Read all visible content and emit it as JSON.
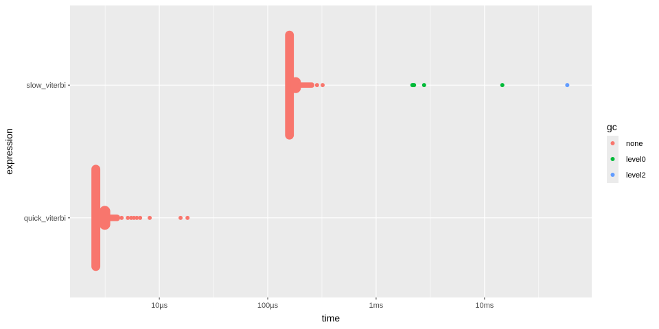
{
  "chart_data": {
    "type": "scatter",
    "xlabel": "time",
    "ylabel": "expression",
    "x_scale": "log10",
    "x_unit": "seconds",
    "xlim": [
      1.5e-06,
      0.0975
    ],
    "grid": true,
    "categories": [
      "quick_viterbi",
      "slow_viterbi"
    ],
    "x_ticks": [
      {
        "value": 1e-05,
        "label": "10µs"
      },
      {
        "value": 0.0001,
        "label": "100µs"
      },
      {
        "value": 0.001,
        "label": "1ms"
      },
      {
        "value": 0.01,
        "label": "10ms"
      }
    ],
    "legend": {
      "title": "gc",
      "placement": "right",
      "entries": [
        {
          "label": "none",
          "color": "#F8766D"
        },
        {
          "label": "level0",
          "color": "#00BA38"
        },
        {
          "label": "level2",
          "color": "#619CFF"
        }
      ]
    },
    "dense_clusters": [
      {
        "expression": "quick_viterbi",
        "gc": "none",
        "time_min": 2.45e-06,
        "time_max": 2.75e-06,
        "spread": 0.4
      },
      {
        "expression": "quick_viterbi",
        "gc": "none",
        "time_min": 2.9e-06,
        "time_max": 3.4e-06,
        "spread": 0.09
      },
      {
        "expression": "quick_viterbi",
        "gc": "none",
        "time_min": 2.75e-06,
        "time_max": 4.2e-06,
        "spread": 0.025
      },
      {
        "expression": "slow_viterbi",
        "gc": "none",
        "time_min": 0.00015,
        "time_max": 0.000168,
        "spread": 0.41
      },
      {
        "expression": "slow_viterbi",
        "gc": "none",
        "time_min": 0.000168,
        "time_max": 0.000195,
        "spread": 0.06
      },
      {
        "expression": "slow_viterbi",
        "gc": "none",
        "time_min": 0.000195,
        "time_max": 0.00026,
        "spread": 0.02
      }
    ],
    "points": [
      {
        "expression": "quick_viterbi",
        "gc": "none",
        "time": 4.49e-06
      },
      {
        "expression": "quick_viterbi",
        "gc": "none",
        "time": 5.12e-06
      },
      {
        "expression": "quick_viterbi",
        "gc": "none",
        "time": 5.5e-06
      },
      {
        "expression": "quick_viterbi",
        "gc": "none",
        "time": 5.83e-06
      },
      {
        "expression": "quick_viterbi",
        "gc": "none",
        "time": 6.2e-06
      },
      {
        "expression": "quick_viterbi",
        "gc": "none",
        "time": 6.65e-06
      },
      {
        "expression": "quick_viterbi",
        "gc": "none",
        "time": 8.15e-06
      },
      {
        "expression": "quick_viterbi",
        "gc": "none",
        "time": 1.57e-05
      },
      {
        "expression": "quick_viterbi",
        "gc": "none",
        "time": 1.82e-05
      },
      {
        "expression": "slow_viterbi",
        "gc": "none",
        "time": 0.000285
      },
      {
        "expression": "slow_viterbi",
        "gc": "none",
        "time": 0.000321
      },
      {
        "expression": "slow_viterbi",
        "gc": "level0",
        "time": 0.00216
      },
      {
        "expression": "slow_viterbi",
        "gc": "level0",
        "time": 0.0022
      },
      {
        "expression": "slow_viterbi",
        "gc": "level0",
        "time": 0.00224
      },
      {
        "expression": "slow_viterbi",
        "gc": "level0",
        "time": 0.00277
      },
      {
        "expression": "slow_viterbi",
        "gc": "level0",
        "time": 0.0146
      },
      {
        "expression": "slow_viterbi",
        "gc": "level2",
        "time": 0.058
      }
    ]
  }
}
